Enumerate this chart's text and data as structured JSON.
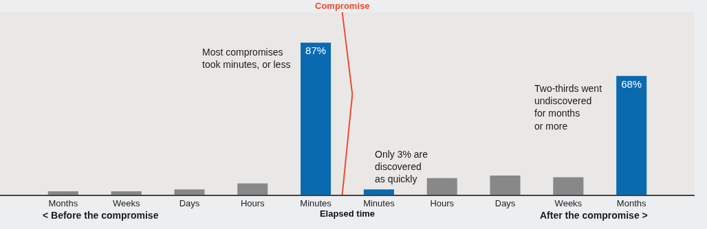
{
  "chart_data": {
    "type": "bar",
    "categories": [
      "Months",
      "Weeks",
      "Days",
      "Hours",
      "Minutes",
      "Minutes",
      "Hours",
      "Days",
      "Weeks",
      "Months"
    ],
    "values": [
      2,
      2,
      3,
      6.5,
      87,
      3,
      9.5,
      11,
      10,
      68
    ],
    "colors": [
      "#888888",
      "#888888",
      "#888888",
      "#888888",
      "#0a6ab0",
      "#0a6ab0",
      "#888888",
      "#888888",
      "#888888",
      "#0a6ab0"
    ],
    "value_labels": [
      null,
      null,
      null,
      null,
      "87%",
      null,
      null,
      null,
      null,
      "68%"
    ],
    "xlabel": "Elapsed time",
    "annotations": [
      "Compromise",
      "Most compromises\ntook minutes, or less",
      "Only 3% are\ndiscovered\nas quickly",
      "Two-thirds went\nundiscovered\nfor months\nor more",
      "< Before the compromise",
      "After the compromise >"
    ],
    "grid": false,
    "legend": false
  }
}
